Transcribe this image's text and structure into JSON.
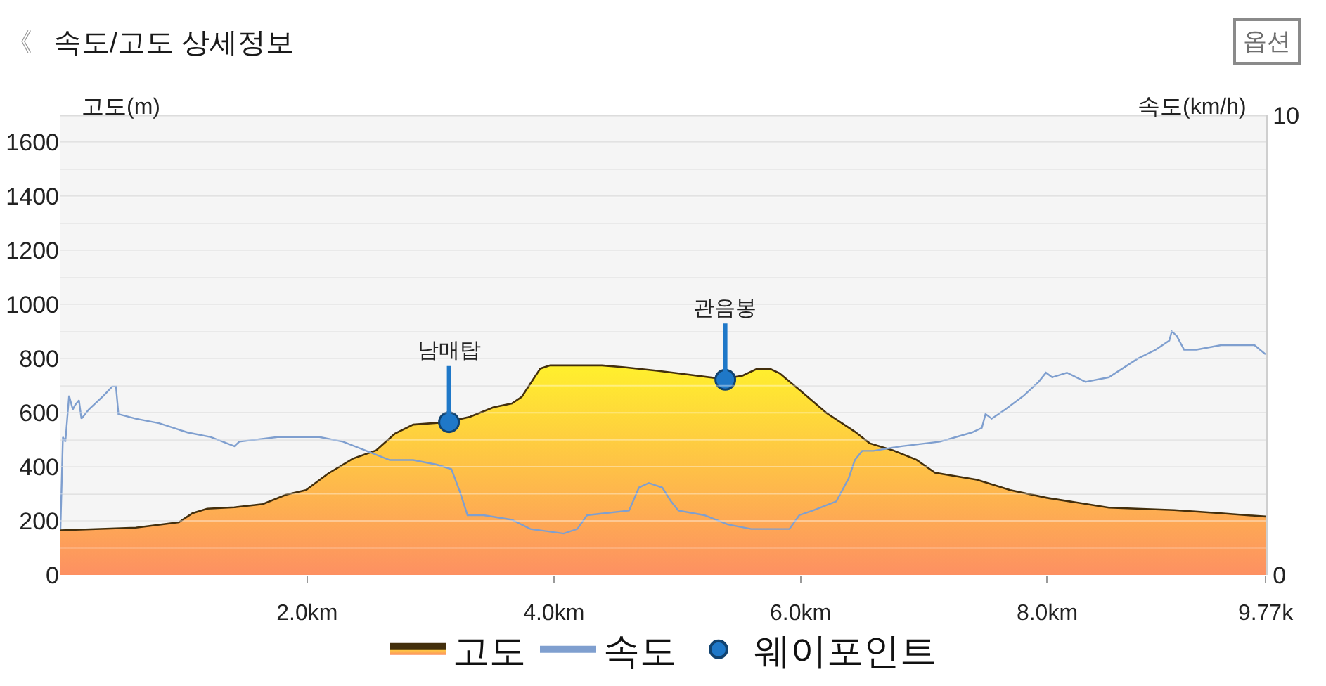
{
  "chart_data": {
    "type": "area",
    "title": "속도/고도 상세정보",
    "ylabel": "고도(m)",
    "y2label": "속도(km/h)",
    "annotations": [
      "《",
      "옵션",
      {
        "text": "남매탑",
        "x": 3.15,
        "y": 565
      },
      {
        "text": "관음봉",
        "x": 5.39,
        "y": 722
      }
    ],
    "xlim": [
      0,
      9.77
    ],
    "xticks": [
      {
        "value": 2,
        "label": "2.0km"
      },
      {
        "value": 4,
        "label": "4.0km"
      },
      {
        "value": 6,
        "label": "6.0km"
      },
      {
        "value": 8,
        "label": "8.0km"
      },
      {
        "value": 9.77,
        "label": "9.77k"
      }
    ],
    "ylim": [
      0,
      1700
    ],
    "yticks": [
      0,
      {
        "value": 100,
        "label": null
      },
      200,
      {
        "value": 300,
        "label": null
      },
      400,
      {
        "value": 500,
        "label": null
      },
      600,
      {
        "value": 700,
        "label": null
      },
      800,
      {
        "value": 900,
        "label": null
      },
      1000,
      {
        "value": 1100,
        "label": null
      },
      1200,
      {
        "value": 1300,
        "label": null
      },
      1400,
      {
        "value": 1500,
        "label": null
      },
      1600,
      {
        "value": 1700,
        "label": null
      }
    ],
    "y2lim": [
      0,
      10
    ],
    "y2ticks": [
      0,
      10
    ],
    "grid": "y",
    "legend": "bottom",
    "series": [
      {
        "name": "고도",
        "color": "#fcb43a",
        "x": [
          0,
          0.61,
          0.96,
          1.07,
          1.19,
          1.41,
          1.64,
          1.83,
          1.99,
          2.17,
          2.37,
          2.56,
          2.71,
          2.86,
          3.13,
          3.32,
          3.51,
          3.66,
          3.74,
          3.89,
          3.97,
          4.39,
          4.57,
          4.84,
          5.07,
          5.37,
          5.53,
          5.64,
          5.76,
          5.83,
          5.99,
          6.21,
          6.44,
          6.56,
          6.75,
          6.94,
          7.09,
          7.43,
          7.7,
          8,
          8.5,
          9.03,
          9.41,
          9.77
        ],
        "values": [
          165,
          175,
          195,
          228,
          245,
          250,
          262,
          297,
          314,
          375,
          430,
          461,
          522,
          556,
          565,
          585,
          620,
          634,
          659,
          763,
          775,
          775,
          768,
          755,
          742,
          725,
          737,
          761,
          761,
          746,
          685,
          599,
          530,
          487,
          461,
          426,
          378,
          352,
          314,
          285,
          249,
          240,
          228,
          216
        ]
      },
      {
        "name": "속도",
        "type": "line",
        "axis": "y2",
        "color": "#7f9fcf",
        "x": [
          0,
          0.02,
          0.04,
          0.07,
          0.1,
          0.12,
          0.15,
          0.17,
          0.23,
          0.35,
          0.42,
          0.45,
          0.47,
          0.61,
          0.8,
          1.03,
          1.22,
          1.41,
          1.45,
          1.76,
          2.1,
          2.29,
          2.48,
          2.67,
          2.86,
          3.05,
          3.17,
          3.24,
          3.3,
          3.43,
          3.66,
          3.81,
          4.08,
          4.19,
          4.27,
          4.61,
          4.69,
          4.77,
          4.88,
          4.95,
          5.01,
          5.22,
          5.41,
          5.6,
          5.91,
          5.99,
          6.1,
          6.29,
          6.39,
          6.44,
          6.5,
          6.59,
          6.82,
          7.13,
          7.39,
          7.47,
          7.5,
          7.55,
          7.66,
          7.81,
          7.93,
          7.99,
          8.04,
          8.16,
          8.31,
          8.5,
          8.73,
          8.88,
          8.99,
          9.01,
          9.05,
          9.11,
          9.21,
          9.41,
          9.68,
          9.77
        ],
        "values": [
          1.0,
          3.0,
          2.9,
          3.9,
          3.6,
          3.7,
          3.8,
          3.4,
          3.6,
          3.9,
          4.1,
          4.1,
          3.5,
          3.4,
          3.3,
          3.1,
          3.0,
          2.8,
          2.9,
          3.0,
          3.0,
          2.9,
          2.7,
          2.5,
          2.5,
          2.4,
          2.3,
          1.8,
          1.3,
          1.3,
          1.2,
          1.0,
          0.9,
          1.0,
          1.3,
          1.4,
          1.9,
          2.0,
          1.9,
          1.6,
          1.4,
          1.3,
          1.1,
          1.0,
          1.0,
          1.3,
          1.4,
          1.6,
          2.1,
          2.5,
          2.7,
          2.7,
          2.8,
          2.9,
          3.1,
          3.2,
          3.5,
          3.4,
          3.6,
          3.9,
          4.2,
          4.4,
          4.3,
          4.4,
          4.2,
          4.3,
          4.7,
          4.9,
          5.1,
          5.3,
          5.2,
          4.9,
          4.9,
          5.0,
          5.0,
          4.8
        ]
      },
      {
        "name": "웨이포인트",
        "type": "scatter",
        "marker": "circle",
        "color": "#1f78c8",
        "x": [
          3.15,
          5.39
        ],
        "values": [
          565,
          722
        ]
      }
    ]
  }
}
